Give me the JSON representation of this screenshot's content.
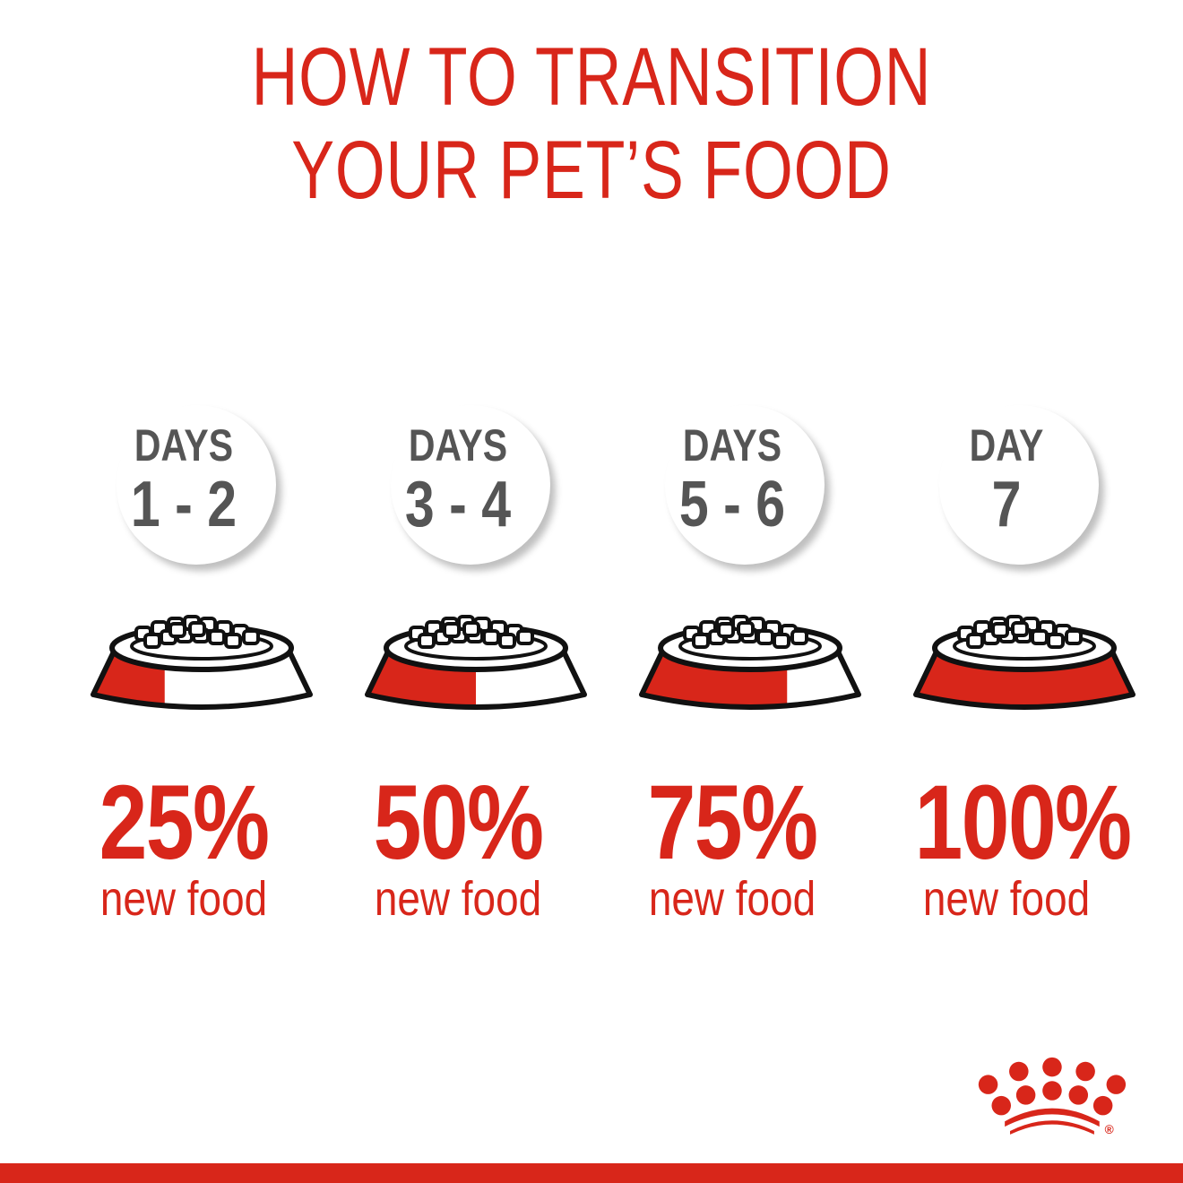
{
  "title": {
    "line1": "HOW TO TRANSITION",
    "line2": "YOUR PET’S FOOD"
  },
  "steps": [
    {
      "label": "DAYS",
      "range": "1 - 2",
      "percent": "25%",
      "new_food_fraction": 0.25,
      "caption": "new food"
    },
    {
      "label": "DAYS",
      "range": "3 - 4",
      "percent": "50%",
      "new_food_fraction": 0.5,
      "caption": "new food"
    },
    {
      "label": "DAYS",
      "range": "5 - 6",
      "percent": "75%",
      "new_food_fraction": 0.75,
      "caption": "new food"
    },
    {
      "label": "DAY",
      "range": "7",
      "percent": "100%",
      "new_food_fraction": 1.0,
      "caption": "new food"
    }
  ],
  "logo": {
    "name": "crown-logo",
    "mark": "®"
  },
  "colors": {
    "brand_red": "#d8261a",
    "day_text": "#555555"
  }
}
